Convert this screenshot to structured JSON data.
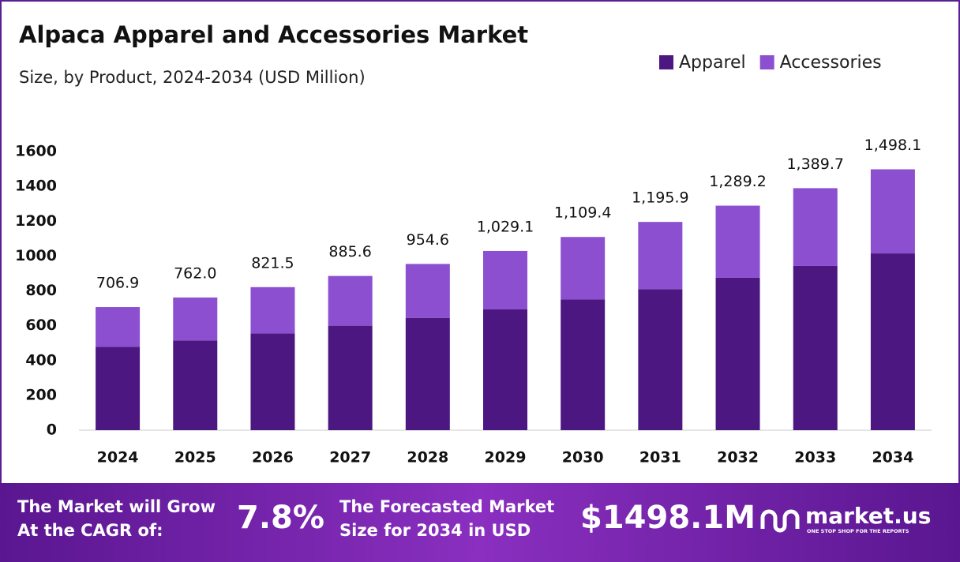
{
  "chart_data": {
    "type": "stacked_bar",
    "title": "Alpaca Apparel and Accessories Market",
    "subtitle": "Size, by Product, 2024-2034 (USD Million)",
    "categories": [
      "2024",
      "2025",
      "2026",
      "2027",
      "2028",
      "2029",
      "2030",
      "2031",
      "2032",
      "2033",
      "2034"
    ],
    "series": [
      {
        "name": "Apparel",
        "color": "#4d1782",
        "values": [
          478,
          515,
          555,
          600,
          645,
          695,
          750,
          810,
          875,
          943,
          1015
        ]
      },
      {
        "name": "Accessories",
        "color": "#8b4fd0",
        "values": [
          228.9,
          247.0,
          266.5,
          285.6,
          309.6,
          334.1,
          359.4,
          385.9,
          414.2,
          446.7,
          483.1
        ]
      }
    ],
    "totals": {
      "values": [
        706.9,
        762.0,
        821.5,
        885.6,
        954.6,
        1029.1,
        1109.4,
        1195.9,
        1289.2,
        1389.7,
        1498.1
      ],
      "value_labels": [
        "706.9",
        "762.0",
        "821.5",
        "885.6",
        "954.6",
        "1,029.1",
        "1,109.4",
        "1,195.9",
        "1,289.2",
        "1,389.7",
        "1,498.1"
      ]
    },
    "ylim": [
      0,
      1600
    ],
    "yticks": [
      0,
      200,
      400,
      600,
      800,
      1000,
      1200,
      1400,
      1600
    ],
    "legend": "top-right",
    "grid": false
  },
  "footer": {
    "cagr_text": [
      "The Market will Grow",
      "At the CAGR of:"
    ],
    "cagr_value": "7.8%",
    "forecast_text": [
      "The Forecasted Market",
      "Size for 2034 in USD"
    ],
    "forecast_value": "$1498.1M",
    "brand": "market.us",
    "tagline": "ONE STOP SHOP FOR THE REPORTS"
  }
}
